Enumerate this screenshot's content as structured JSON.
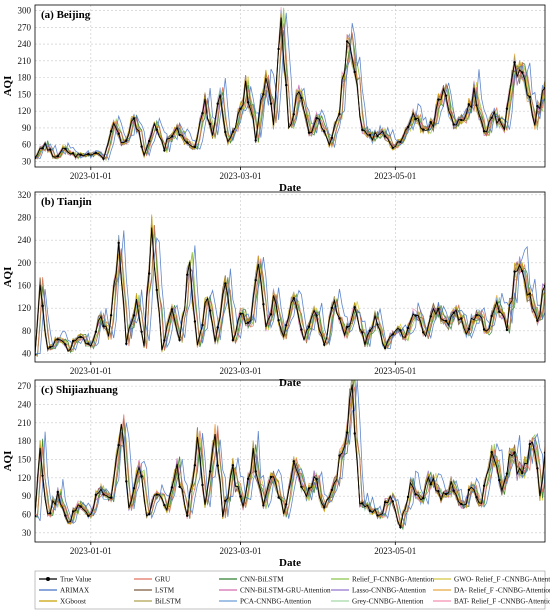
{
  "chart_data": [
    {
      "type": "line",
      "title": "(a) Beijing",
      "xlabel": "Date",
      "ylabel": "AQI",
      "x_tick_labels": [
        "2023-01-01",
        "2023-03-01",
        "2023-05-01"
      ],
      "x_range": [
        "2022-12-10",
        "2023-06-29"
      ],
      "ylim": [
        20,
        310
      ],
      "yticks": [
        30,
        60,
        90,
        120,
        150,
        180,
        210,
        240,
        270,
        300
      ],
      "grid": true,
      "true_value_anchors": [
        [
          "2022-12-10",
          38
        ],
        [
          "2022-12-14",
          60
        ],
        [
          "2022-12-18",
          35
        ],
        [
          "2022-12-22",
          55
        ],
        [
          "2022-12-26",
          40
        ],
        [
          "2023-01-01",
          45
        ],
        [
          "2023-01-06",
          38
        ],
        [
          "2023-01-10",
          95
        ],
        [
          "2023-01-14",
          60
        ],
        [
          "2023-01-18",
          110
        ],
        [
          "2023-01-22",
          45
        ],
        [
          "2023-01-26",
          100
        ],
        [
          "2023-01-30",
          55
        ],
        [
          "2023-02-03",
          90
        ],
        [
          "2023-02-07",
          65
        ],
        [
          "2023-02-11",
          60
        ],
        [
          "2023-02-15",
          130
        ],
        [
          "2023-02-18",
          70
        ],
        [
          "2023-02-21",
          150
        ],
        [
          "2023-02-24",
          60
        ],
        [
          "2023-02-27",
          90
        ],
        [
          "2023-03-03",
          160
        ],
        [
          "2023-03-07",
          75
        ],
        [
          "2023-03-11",
          185
        ],
        [
          "2023-03-14",
          90
        ],
        [
          "2023-03-17",
          293
        ],
        [
          "2023-03-20",
          90
        ],
        [
          "2023-03-24",
          160
        ],
        [
          "2023-03-28",
          80
        ],
        [
          "2023-04-01",
          110
        ],
        [
          "2023-04-05",
          60
        ],
        [
          "2023-04-09",
          120
        ],
        [
          "2023-04-12",
          245
        ],
        [
          "2023-04-15",
          200
        ],
        [
          "2023-04-18",
          80
        ],
        [
          "2023-04-22",
          70
        ],
        [
          "2023-04-26",
          90
        ],
        [
          "2023-04-30",
          55
        ],
        [
          "2023-05-04",
          70
        ],
        [
          "2023-05-08",
          120
        ],
        [
          "2023-05-12",
          80
        ],
        [
          "2023-05-16",
          100
        ],
        [
          "2023-05-20",
          165
        ],
        [
          "2023-05-24",
          90
        ],
        [
          "2023-05-28",
          110
        ],
        [
          "2023-06-01",
          150
        ],
        [
          "2023-06-05",
          85
        ],
        [
          "2023-06-09",
          110
        ],
        [
          "2023-06-13",
          90
        ],
        [
          "2023-06-17",
          195
        ],
        [
          "2023-06-21",
          175
        ],
        [
          "2023-06-25",
          100
        ],
        [
          "2023-06-29",
          175
        ]
      ]
    },
    {
      "type": "line",
      "title": "(b) Tianjin",
      "xlabel": "Date",
      "ylabel": "AQI",
      "x_tick_labels": [
        "2023-01-01",
        "2023-03-01",
        "2023-05-01"
      ],
      "x_range": [
        "2022-12-10",
        "2023-06-29"
      ],
      "ylim": [
        25,
        325
      ],
      "yticks": [
        40,
        80,
        120,
        160,
        200,
        240,
        280,
        320
      ],
      "grid": true,
      "true_value_anchors": [
        [
          "2022-12-10",
          40
        ],
        [
          "2022-12-12",
          150
        ],
        [
          "2022-12-15",
          45
        ],
        [
          "2022-12-19",
          70
        ],
        [
          "2022-12-23",
          45
        ],
        [
          "2022-12-27",
          75
        ],
        [
          "2023-01-01",
          50
        ],
        [
          "2023-01-05",
          110
        ],
        [
          "2023-01-08",
          70
        ],
        [
          "2023-01-12",
          235
        ],
        [
          "2023-01-15",
          60
        ],
        [
          "2023-01-19",
          130
        ],
        [
          "2023-01-22",
          55
        ],
        [
          "2023-01-25",
          270
        ],
        [
          "2023-01-29",
          50
        ],
        [
          "2023-02-02",
          120
        ],
        [
          "2023-02-05",
          60
        ],
        [
          "2023-02-09",
          200
        ],
        [
          "2023-02-12",
          55
        ],
        [
          "2023-02-16",
          140
        ],
        [
          "2023-02-19",
          60
        ],
        [
          "2023-02-23",
          165
        ],
        [
          "2023-02-26",
          60
        ],
        [
          "2023-03-01",
          110
        ],
        [
          "2023-03-05",
          90
        ],
        [
          "2023-03-08",
          205
        ],
        [
          "2023-03-11",
          80
        ],
        [
          "2023-03-14",
          130
        ],
        [
          "2023-03-18",
          75
        ],
        [
          "2023-03-22",
          140
        ],
        [
          "2023-03-26",
          60
        ],
        [
          "2023-03-30",
          115
        ],
        [
          "2023-04-03",
          55
        ],
        [
          "2023-04-07",
          130
        ],
        [
          "2023-04-11",
          70
        ],
        [
          "2023-04-15",
          115
        ],
        [
          "2023-04-19",
          60
        ],
        [
          "2023-04-23",
          100
        ],
        [
          "2023-04-27",
          50
        ],
        [
          "2023-05-01",
          80
        ],
        [
          "2023-05-05",
          70
        ],
        [
          "2023-05-09",
          110
        ],
        [
          "2023-05-13",
          75
        ],
        [
          "2023-05-17",
          120
        ],
        [
          "2023-05-21",
          90
        ],
        [
          "2023-05-25",
          115
        ],
        [
          "2023-05-29",
          80
        ],
        [
          "2023-06-02",
          110
        ],
        [
          "2023-06-06",
          80
        ],
        [
          "2023-06-10",
          120
        ],
        [
          "2023-06-14",
          90
        ],
        [
          "2023-06-18",
          200
        ],
        [
          "2023-06-22",
          150
        ],
        [
          "2023-06-26",
          100
        ],
        [
          "2023-06-29",
          160
        ]
      ]
    },
    {
      "type": "line",
      "title": "(c) Shijiazhuang",
      "xlabel": "Date",
      "ylabel": "AQI",
      "x_tick_labels": [
        "2023-01-01",
        "2023-03-01",
        "2023-05-01"
      ],
      "x_range": [
        "2022-12-10",
        "2023-06-29"
      ],
      "ylim": [
        15,
        280
      ],
      "yticks": [
        30,
        60,
        90,
        120,
        150,
        180,
        210,
        240,
        270
      ],
      "grid": true,
      "true_value_anchors": [
        [
          "2022-12-10",
          60
        ],
        [
          "2022-12-12",
          160
        ],
        [
          "2022-12-15",
          60
        ],
        [
          "2022-12-19",
          90
        ],
        [
          "2022-12-23",
          45
        ],
        [
          "2022-12-27",
          80
        ],
        [
          "2023-01-01",
          60
        ],
        [
          "2023-01-05",
          110
        ],
        [
          "2023-01-09",
          80
        ],
        [
          "2023-01-13",
          210
        ],
        [
          "2023-01-16",
          70
        ],
        [
          "2023-01-20",
          150
        ],
        [
          "2023-01-23",
          55
        ],
        [
          "2023-01-27",
          100
        ],
        [
          "2023-01-31",
          70
        ],
        [
          "2023-02-04",
          130
        ],
        [
          "2023-02-08",
          60
        ],
        [
          "2023-02-12",
          180
        ],
        [
          "2023-02-15",
          70
        ],
        [
          "2023-02-19",
          200
        ],
        [
          "2023-02-22",
          60
        ],
        [
          "2023-02-26",
          130
        ],
        [
          "2023-03-02",
          75
        ],
        [
          "2023-03-06",
          160
        ],
        [
          "2023-03-10",
          80
        ],
        [
          "2023-03-14",
          130
        ],
        [
          "2023-03-18",
          65
        ],
        [
          "2023-03-22",
          140
        ],
        [
          "2023-03-26",
          90
        ],
        [
          "2023-03-30",
          120
        ],
        [
          "2023-04-03",
          70
        ],
        [
          "2023-04-07",
          110
        ],
        [
          "2023-04-11",
          180
        ],
        [
          "2023-04-14",
          260
        ],
        [
          "2023-04-17",
          80
        ],
        [
          "2023-04-21",
          70
        ],
        [
          "2023-04-25",
          60
        ],
        [
          "2023-04-29",
          90
        ],
        [
          "2023-05-03",
          40
        ],
        [
          "2023-05-07",
          110
        ],
        [
          "2023-05-11",
          80
        ],
        [
          "2023-05-15",
          120
        ],
        [
          "2023-05-19",
          85
        ],
        [
          "2023-05-23",
          110
        ],
        [
          "2023-05-27",
          70
        ],
        [
          "2023-05-31",
          100
        ],
        [
          "2023-06-04",
          80
        ],
        [
          "2023-06-08",
          150
        ],
        [
          "2023-06-12",
          110
        ],
        [
          "2023-06-16",
          160
        ],
        [
          "2023-06-20",
          120
        ],
        [
          "2023-06-24",
          180
        ],
        [
          "2023-06-27",
          100
        ],
        [
          "2023-06-29",
          150
        ]
      ]
    }
  ],
  "legend": {
    "placement": "bottom",
    "entries": [
      {
        "name": "True Value",
        "color": "#000000",
        "marker": "dot"
      },
      {
        "name": "ARIMAX",
        "color": "#4472c4"
      },
      {
        "name": "XGboost",
        "color": "#c8a000"
      },
      {
        "name": "GRU",
        "color": "#e07060"
      },
      {
        "name": "LSTM",
        "color": "#7a5a3a"
      },
      {
        "name": "BiLSTM",
        "color": "#b0a050"
      },
      {
        "name": "CNN-BiLSTM",
        "color": "#2e7d32"
      },
      {
        "name": "CNN-BiLSTM-GRU-Attention",
        "color": "#d46cb0"
      },
      {
        "name": "PCA-CNNBG-Attention",
        "color": "#6a9fd8"
      },
      {
        "name": "Relief_F-CNNBG-Attention",
        "color": "#8bc34a"
      },
      {
        "name": "Lasso-CNNBG-Attention",
        "color": "#9575cd"
      },
      {
        "name": "Grey-CNNBG-Attention",
        "color": "#a5d6a7"
      },
      {
        "name": "GWO- Relief_F -CNNBG-Attention",
        "color": "#d4c840"
      },
      {
        "name": "DA- Relief_F -CNNBG-Attention",
        "color": "#e8a840"
      },
      {
        "name": "BAT- Relief_F -CNNBG-Attention",
        "color": "#f48fb1"
      }
    ]
  }
}
